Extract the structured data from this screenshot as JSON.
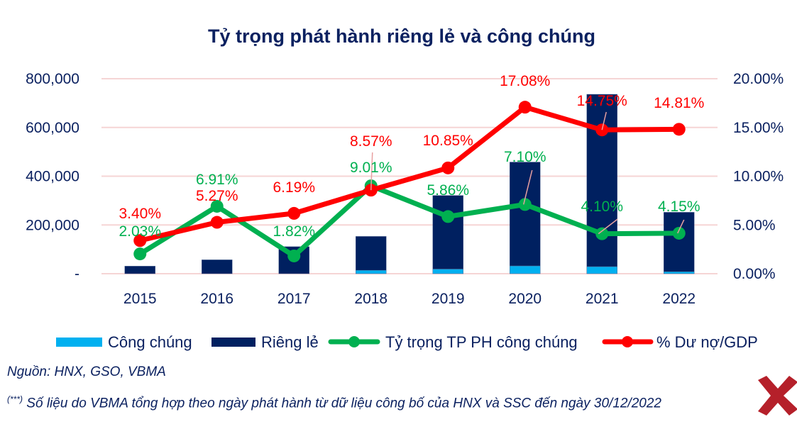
{
  "chart_data": {
    "type": "bar",
    "title": "Tỷ trọng phát hành riêng lẻ và công chúng",
    "categories": [
      "2015",
      "2016",
      "2017",
      "2018",
      "2019",
      "2020",
      "2021",
      "2022"
    ],
    "y_left": {
      "ylim": [
        0,
        800000
      ],
      "ticks": [
        "-",
        "200,000",
        "400,000",
        "600,000",
        "800,000"
      ],
      "tick_values": [
        0,
        200000,
        400000,
        600000,
        800000
      ]
    },
    "y_right": {
      "ylim": [
        0,
        0.2
      ],
      "ticks": [
        "0.00%",
        "5.00%",
        "10.00%",
        "15.00%",
        "20.00%"
      ],
      "tick_values": [
        0,
        0.05,
        0.1,
        0.15,
        0.2
      ]
    },
    "grid": true,
    "legend_position": "bottom",
    "series": [
      {
        "name": "Công chúng",
        "kind": "bar-stacked",
        "axis": "left",
        "color": "#00b0f0",
        "values": [
          0,
          0,
          0,
          14000,
          19000,
          32000,
          29000,
          8000
        ]
      },
      {
        "name": "Riêng lẻ",
        "kind": "bar-stacked",
        "axis": "left",
        "color": "#002060",
        "values": [
          31000,
          57000,
          111000,
          139000,
          302000,
          426000,
          707000,
          244000
        ]
      },
      {
        "name": "Tỷ trọng TP PH công chúng",
        "kind": "line",
        "axis": "right",
        "color": "#00b050",
        "values": [
          0.0203,
          0.0691,
          0.0182,
          0.0901,
          0.0586,
          0.071,
          0.041,
          0.0415
        ],
        "labels": [
          "2.03%",
          "6.91%",
          "1.82%",
          "9.01%",
          "5.86%",
          "7.10%",
          "4.10%",
          "4.15%"
        ]
      },
      {
        "name": "% Dư nợ/GDP",
        "kind": "line",
        "axis": "right",
        "color": "#ff0000",
        "values": [
          0.034,
          0.0527,
          0.0619,
          0.0857,
          0.1085,
          0.1708,
          0.1475,
          0.1481
        ],
        "labels": [
          "3.40%",
          "5.27%",
          "6.19%",
          "8.57%",
          "10.85%",
          "17.08%",
          "14.75%",
          "14.81%"
        ]
      }
    ]
  },
  "colors": {
    "text": "#0b2160",
    "grid": "#f6d5d5",
    "leader": "#e8a0a0",
    "logo": "#b5202a"
  },
  "footer": {
    "source": "Nguồn: HNX, GSO, VBMA",
    "note_mark": "(***)",
    "note": " Số liệu do VBMA tổng hợp theo ngày phát hành từ dữ liệu công bố của HNX và SSC đến ngày 30/12/2022"
  },
  "logo": {
    "icon": "x-logo-icon"
  }
}
